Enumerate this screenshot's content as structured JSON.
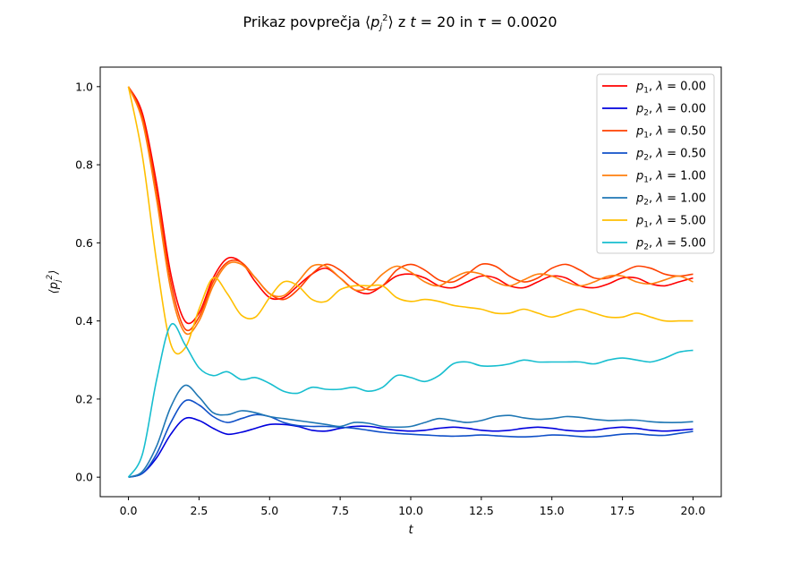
{
  "chart_data": {
    "type": "line",
    "title": "Prikaz povprečja ⟨p_j^2⟩  z t = 20 in τ = 0.0020",
    "xlabel": "t",
    "ylabel": "⟨p_j^2⟩",
    "xlim": [
      -1.0,
      21.0
    ],
    "ylim": [
      -0.05,
      1.05
    ],
    "xticks": [
      "0.0",
      "2.5",
      "5.0",
      "7.5",
      "10.0",
      "12.5",
      "15.0",
      "17.5",
      "20.0"
    ],
    "yticks": [
      "0.0",
      "0.2",
      "0.4",
      "0.6",
      "0.8",
      "1.0"
    ],
    "grid": false,
    "legend_position": "top-right",
    "x": [
      0,
      0.5,
      1,
      1.5,
      2,
      2.5,
      3,
      3.5,
      4,
      4.5,
      5,
      5.5,
      6,
      6.5,
      7,
      7.5,
      8,
      8.5,
      9,
      9.5,
      10,
      10.5,
      11,
      11.5,
      12,
      12.5,
      13,
      13.5,
      14,
      14.5,
      15,
      15.5,
      16,
      16.5,
      17,
      17.5,
      18,
      18.5,
      19,
      19.5,
      20
    ],
    "series": [
      {
        "name": "p1, λ = 0.00",
        "color": "#ff0000",
        "values": [
          1.0,
          0.93,
          0.75,
          0.52,
          0.4,
          0.42,
          0.51,
          0.56,
          0.55,
          0.5,
          0.46,
          0.46,
          0.49,
          0.52,
          0.535,
          0.51,
          0.48,
          0.47,
          0.49,
          0.515,
          0.52,
          0.51,
          0.49,
          0.485,
          0.5,
          0.515,
          0.51,
          0.49,
          0.485,
          0.5,
          0.515,
          0.51,
          0.49,
          0.485,
          0.495,
          0.51,
          0.51,
          0.495,
          0.49,
          0.5,
          0.51
        ]
      },
      {
        "name": "p2, λ = 0.00",
        "color": "#0000dd",
        "values": [
          0.0,
          0.01,
          0.05,
          0.11,
          0.15,
          0.145,
          0.125,
          0.11,
          0.115,
          0.125,
          0.135,
          0.135,
          0.13,
          0.12,
          0.118,
          0.125,
          0.13,
          0.13,
          0.125,
          0.12,
          0.118,
          0.12,
          0.125,
          0.128,
          0.125,
          0.12,
          0.118,
          0.12,
          0.125,
          0.128,
          0.125,
          0.12,
          0.118,
          0.12,
          0.125,
          0.128,
          0.125,
          0.12,
          0.118,
          0.12,
          0.123
        ]
      },
      {
        "name": "p1, λ = 0.50",
        "color": "#ff4000",
        "values": [
          1.0,
          0.92,
          0.73,
          0.5,
          0.38,
          0.41,
          0.5,
          0.55,
          0.55,
          0.51,
          0.47,
          0.455,
          0.48,
          0.52,
          0.545,
          0.53,
          0.5,
          0.48,
          0.49,
          0.53,
          0.545,
          0.53,
          0.505,
          0.5,
          0.52,
          0.545,
          0.54,
          0.515,
          0.5,
          0.51,
          0.535,
          0.545,
          0.53,
          0.51,
          0.51,
          0.525,
          0.54,
          0.535,
          0.52,
          0.515,
          0.52
        ]
      },
      {
        "name": "p2, λ = 0.50",
        "color": "#1050c8",
        "values": [
          0.0,
          0.01,
          0.06,
          0.14,
          0.195,
          0.185,
          0.155,
          0.14,
          0.15,
          0.16,
          0.155,
          0.14,
          0.132,
          0.13,
          0.13,
          0.128,
          0.125,
          0.12,
          0.115,
          0.112,
          0.11,
          0.108,
          0.106,
          0.105,
          0.106,
          0.108,
          0.106,
          0.104,
          0.103,
          0.105,
          0.108,
          0.107,
          0.104,
          0.103,
          0.106,
          0.11,
          0.111,
          0.108,
          0.107,
          0.112,
          0.117
        ]
      },
      {
        "name": "p1, λ = 1.00",
        "color": "#ff7f0e",
        "values": [
          1.0,
          0.91,
          0.71,
          0.48,
          0.37,
          0.4,
          0.49,
          0.545,
          0.545,
          0.51,
          0.47,
          0.465,
          0.5,
          0.54,
          0.54,
          0.51,
          0.48,
          0.485,
          0.52,
          0.54,
          0.525,
          0.5,
          0.49,
          0.51,
          0.525,
          0.52,
          0.5,
          0.49,
          0.505,
          0.52,
          0.515,
          0.5,
          0.49,
          0.5,
          0.515,
          0.515,
          0.5,
          0.495,
          0.505,
          0.515,
          0.5
        ]
      },
      {
        "name": "p2, λ = 1.00",
        "color": "#1f77b4",
        "values": [
          0.0,
          0.015,
          0.08,
          0.18,
          0.235,
          0.205,
          0.165,
          0.16,
          0.17,
          0.165,
          0.155,
          0.15,
          0.145,
          0.14,
          0.135,
          0.13,
          0.14,
          0.138,
          0.13,
          0.128,
          0.13,
          0.14,
          0.15,
          0.145,
          0.14,
          0.145,
          0.155,
          0.158,
          0.152,
          0.148,
          0.15,
          0.155,
          0.153,
          0.148,
          0.145,
          0.146,
          0.146,
          0.142,
          0.14,
          0.14,
          0.142
        ]
      },
      {
        "name": "p1, λ = 5.00",
        "color": "#ffbf00",
        "values": [
          1.0,
          0.82,
          0.55,
          0.34,
          0.33,
          0.43,
          0.51,
          0.47,
          0.415,
          0.41,
          0.46,
          0.5,
          0.49,
          0.455,
          0.45,
          0.48,
          0.49,
          0.49,
          0.49,
          0.46,
          0.45,
          0.455,
          0.45,
          0.44,
          0.435,
          0.43,
          0.42,
          0.42,
          0.43,
          0.42,
          0.41,
          0.42,
          0.43,
          0.42,
          0.41,
          0.41,
          0.42,
          0.41,
          0.4,
          0.4,
          0.4
        ]
      },
      {
        "name": "p2, λ = 5.00",
        "color": "#17becf",
        "values": [
          0.0,
          0.06,
          0.25,
          0.39,
          0.34,
          0.28,
          0.26,
          0.27,
          0.25,
          0.255,
          0.24,
          0.22,
          0.215,
          0.23,
          0.225,
          0.225,
          0.23,
          0.22,
          0.23,
          0.26,
          0.255,
          0.245,
          0.26,
          0.29,
          0.295,
          0.285,
          0.285,
          0.29,
          0.3,
          0.295,
          0.295,
          0.295,
          0.295,
          0.29,
          0.3,
          0.305,
          0.3,
          0.295,
          0.305,
          0.32,
          0.325
        ]
      }
    ]
  }
}
